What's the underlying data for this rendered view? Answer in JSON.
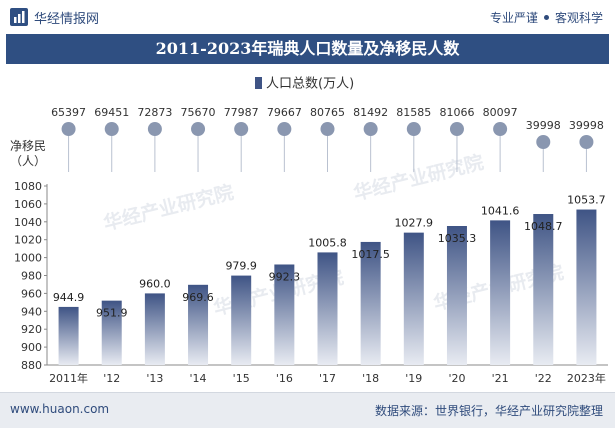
{
  "brand": {
    "name": "华经情报网",
    "tagline_1": "专业严谨",
    "tagline_2": "客观科学"
  },
  "footer": {
    "url": "www.huaon.com",
    "source": "数据来源：世界银行，华经产业研究院整理"
  },
  "watermark": "华经产业研究院",
  "colors": {
    "title_bg": "#2f4f82",
    "bar_top": "#3f5485",
    "bar_bottom": "#e8ebf2",
    "lollipop_stem": "#b9c1d0",
    "lollipop_dot": "#8a97b0"
  },
  "chart_data": {
    "type": "bar",
    "title": "2011-2023年瑞典人口数量及净移民人数",
    "legend": "人口总数(万人)",
    "legend_position": "top-center",
    "categories": [
      "2011年",
      "'12",
      "'13",
      "'14",
      "'15",
      "'16",
      "'17",
      "'18",
      "'19",
      "'20",
      "'21",
      "'22",
      "2023年"
    ],
    "series": [
      {
        "name": "人口总数(万人)",
        "type": "bar",
        "values": [
          944.9,
          951.9,
          960.0,
          969.6,
          979.9,
          992.3,
          1005.8,
          1017.5,
          1027.9,
          1035.3,
          1041.6,
          1048.7,
          1053.7
        ],
        "value_labels": [
          "944.9",
          "951.9",
          "960.0",
          "969.6",
          "979.9",
          "992.3",
          "1005.8",
          "1017.5",
          "1027.9",
          "1035.3",
          "1041.6",
          "1048.7",
          "1053.7"
        ]
      },
      {
        "name": "净移民（人）",
        "type": "lollipop",
        "values": [
          65397,
          69451,
          72873,
          75670,
          77987,
          79667,
          80765,
          81492,
          81585,
          81066,
          80097,
          39998,
          39998
        ]
      }
    ],
    "ylabel_secondary": "净移民\n（人）",
    "ylim": [
      880,
      1080
    ],
    "yticks": [
      880,
      900,
      920,
      940,
      960,
      980,
      1000,
      1020,
      1040,
      1060,
      1080
    ],
    "grid": false
  }
}
